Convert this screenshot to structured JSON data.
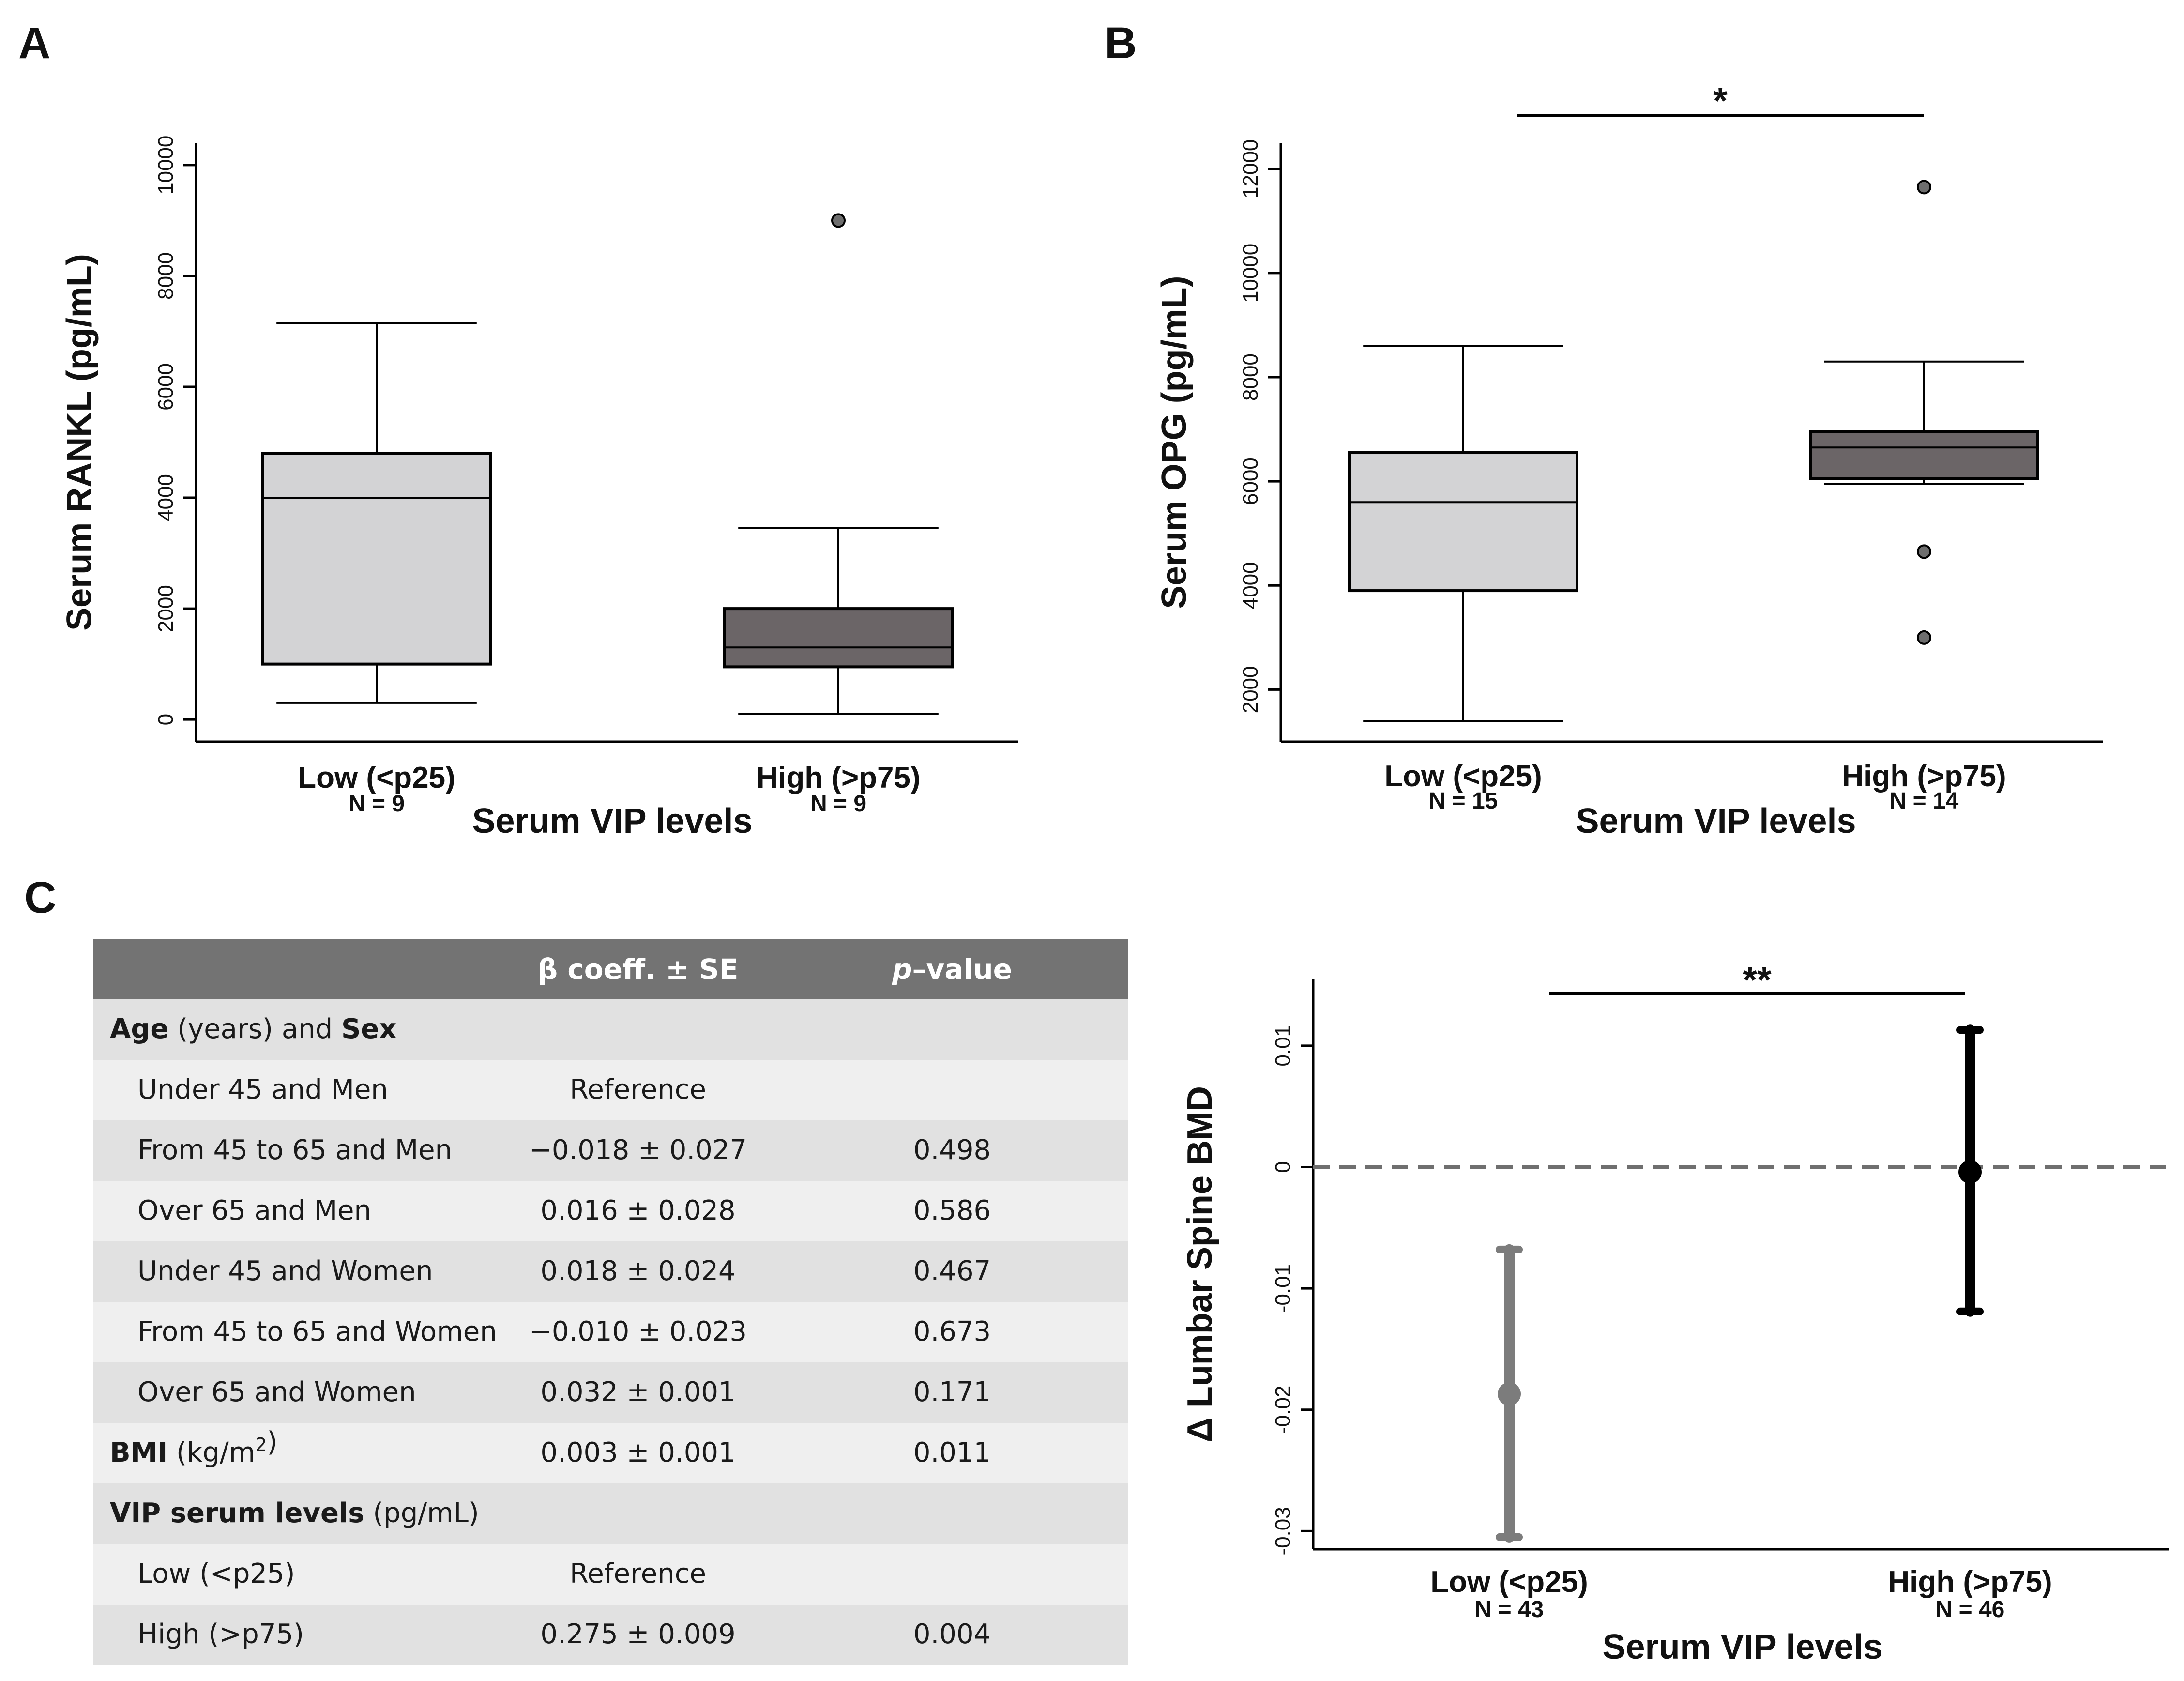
{
  "panel_labels": {
    "a": "A",
    "b": "B",
    "c": "C"
  },
  "colors": {
    "low_box": "#d3d3d5",
    "high_box": "#6b6567",
    "low_point": "#7c7c7c",
    "high_point": "#000000",
    "table_header": "#737373",
    "row_dark": "#e1e1e1",
    "row_light": "#efefef"
  },
  "chart_data": [
    {
      "id": "panelA",
      "type": "boxplot",
      "ylabel": "Serum RANKL (pg/mL)",
      "xlabel": "Serum VIP levels",
      "ylim": [
        -400,
        10400
      ],
      "yticks": [
        0,
        2000,
        4000,
        6000,
        8000,
        10000
      ],
      "groups": [
        {
          "label": "Low (<p25)",
          "n_label": "N = 9",
          "min": 300,
          "q1": 1000,
          "median": 4000,
          "q3": 4800,
          "max": 7150,
          "outliers": []
        },
        {
          "label": "High (>p75)",
          "n_label": "N = 9",
          "min": 100,
          "q1": 950,
          "median": 1300,
          "q3": 2000,
          "max": 3450,
          "outliers": [
            9000
          ]
        }
      ],
      "significance": null
    },
    {
      "id": "panelB",
      "type": "boxplot",
      "ylabel": "Serum OPG (pg/mL)",
      "xlabel": "Serum VIP levels",
      "ylim": [
        1000,
        12500
      ],
      "yticks": [
        2000,
        4000,
        6000,
        8000,
        10000,
        12000
      ],
      "groups": [
        {
          "label": "Low (<p25)",
          "n_label": "N = 15",
          "min": 1400,
          "q1": 3900,
          "median": 5600,
          "q3": 6550,
          "max": 8600,
          "outliers": []
        },
        {
          "label": "High (>p75)",
          "n_label": "N = 14",
          "min": 5950,
          "q1": 6050,
          "median": 6650,
          "q3": 6950,
          "max": 8300,
          "outliers": [
            11650,
            4650,
            3000
          ]
        }
      ],
      "significance": "*"
    },
    {
      "id": "panelC",
      "type": "errorbar",
      "ylabel": "Δ Lumbar Spine BMD",
      "xlabel": "Serum VIP levels",
      "ylim": [
        -0.0315,
        0.0155
      ],
      "yticks": [
        -0.03,
        -0.02,
        -0.01,
        0,
        0.01
      ],
      "ytick_labels": [
        "-0.03",
        "-0.02",
        "-0.01",
        "0",
        "0.01"
      ],
      "reference_line": 0,
      "groups": [
        {
          "label": "Low (<p25)",
          "n_label": "N = 43",
          "estimate": -0.0187,
          "lower": -0.0305,
          "upper": -0.0068
        },
        {
          "label": "High (>p75)",
          "n_label": "N = 46",
          "estimate": -0.0004,
          "lower": -0.0119,
          "upper": 0.0113
        }
      ],
      "significance": "**"
    },
    {
      "id": "tableC",
      "type": "table",
      "columns": [
        "",
        "β coeff. ± SE",
        "p–value"
      ],
      "rows": [
        {
          "segments": [
            {
              "text": "Age",
              "style": "bold"
            },
            {
              "text": " (years) and ",
              "style": ""
            },
            {
              "text": "Sex",
              "style": "bold"
            }
          ],
          "beta": "",
          "p": "",
          "indent": false
        },
        {
          "segments": [
            {
              "text": "Under 45 and Men",
              "style": ""
            }
          ],
          "beta": "Reference",
          "p": "",
          "indent": true
        },
        {
          "segments": [
            {
              "text": "From 45 to 65 and Men",
              "style": ""
            }
          ],
          "beta": "−0.018 ± 0.027",
          "p": "0.498",
          "indent": true
        },
        {
          "segments": [
            {
              "text": "Over 65 and Men",
              "style": ""
            }
          ],
          "beta": "0.016 ± 0.028",
          "p": "0.586",
          "indent": true
        },
        {
          "segments": [
            {
              "text": "Under 45 and Women",
              "style": ""
            }
          ],
          "beta": "0.018 ± 0.024",
          "p": "0.467",
          "indent": true
        },
        {
          "segments": [
            {
              "text": "From 45 to 65 and Women",
              "style": ""
            }
          ],
          "beta": "−0.010 ± 0.023",
          "p": "0.673",
          "indent": true
        },
        {
          "segments": [
            {
              "text": "Over 65 and Women",
              "style": ""
            }
          ],
          "beta": "0.032 ± 0.001",
          "p": "0.171",
          "indent": true
        },
        {
          "segments": [
            {
              "text": "BMI",
              "style": "bold"
            },
            {
              "text": " (kg/m",
              "style": ""
            },
            {
              "text": "2",
              "style": "sup"
            },
            {
              "text": ")",
              "style": ""
            }
          ],
          "beta": "0.003 ± 0.001",
          "p": "0.011",
          "indent": false
        },
        {
          "segments": [
            {
              "text": "VIP serum levels",
              "style": "bold"
            },
            {
              "text": " (pg/mL)",
              "style": ""
            }
          ],
          "beta": "",
          "p": "",
          "indent": false
        },
        {
          "segments": [
            {
              "text": "Low (<p25)",
              "style": ""
            }
          ],
          "beta": "Reference",
          "p": "",
          "indent": true
        },
        {
          "segments": [
            {
              "text": "High (>p75)",
              "style": ""
            }
          ],
          "beta": "0.275 ± 0.009",
          "p": "0.004",
          "indent": true
        }
      ]
    }
  ]
}
